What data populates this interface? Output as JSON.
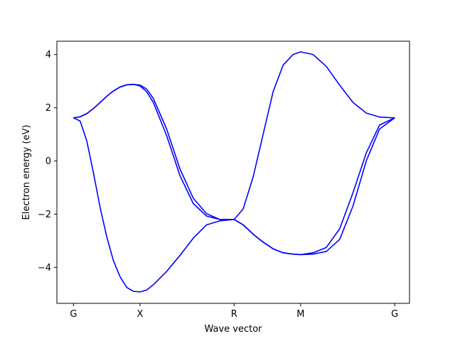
{
  "chart_data": {
    "type": "line",
    "title": "",
    "xlabel": "Wave vector",
    "ylabel": "Electron energy (eV)",
    "xlim": [
      -0.25,
      5.05
    ],
    "ylim": [
      -5.35,
      4.5
    ],
    "grid": false,
    "legend": "none",
    "line_color": "#0000ff",
    "x_ticks": [
      {
        "label": "G",
        "value": 0
      },
      {
        "label": "X",
        "value": 1
      },
      {
        "label": "R",
        "value": 2.414
      },
      {
        "label": "M",
        "value": 3.414
      },
      {
        "label": "G",
        "value": 4.828
      }
    ],
    "y_ticks": [
      -4,
      -2,
      0,
      2,
      4
    ],
    "series": [
      {
        "x": [
          0,
          0.1,
          0.2,
          0.3,
          0.4,
          0.5,
          0.6,
          0.7,
          0.8,
          0.9,
          1.0,
          1.1,
          1.2,
          1.4,
          1.6,
          1.8,
          2.0,
          2.2,
          2.414,
          2.55,
          2.7,
          2.85,
          3.0,
          3.15,
          3.3,
          3.414,
          3.6,
          3.8,
          4.0,
          4.2,
          4.4,
          4.6,
          4.828
        ],
        "y": [
          1.62,
          1.5,
          0.75,
          -0.45,
          -1.75,
          -2.85,
          -3.75,
          -4.35,
          -4.75,
          -4.9,
          -4.92,
          -4.85,
          -4.65,
          -4.15,
          -3.55,
          -2.9,
          -2.4,
          -2.25,
          -2.2,
          -2.4,
          -2.75,
          -3.05,
          -3.3,
          -3.45,
          -3.5,
          -3.52,
          -3.45,
          -3.25,
          -2.55,
          -1.2,
          0.3,
          1.35,
          1.62
        ]
      },
      {
        "x": [
          0,
          0.1,
          0.2,
          0.3,
          0.4,
          0.5,
          0.6,
          0.7,
          0.8,
          0.9,
          1.0,
          1.1,
          1.2,
          1.4,
          1.6,
          1.8,
          2.0,
          2.2,
          2.414,
          2.55,
          2.7,
          2.85,
          3.0,
          3.15,
          3.3,
          3.414,
          3.6,
          3.8,
          4.0,
          4.2,
          4.4,
          4.6,
          4.828
        ],
        "y": [
          1.62,
          1.66,
          1.78,
          1.97,
          2.2,
          2.43,
          2.63,
          2.78,
          2.86,
          2.88,
          2.85,
          2.7,
          2.35,
          1.2,
          -0.3,
          -1.4,
          -1.98,
          -2.2,
          -2.2,
          -1.8,
          -0.6,
          1.0,
          2.6,
          3.6,
          4.0,
          4.1,
          4.0,
          3.55,
          2.85,
          2.2,
          1.8,
          1.65,
          1.62
        ]
      },
      {
        "x": [
          0,
          0.1,
          0.2,
          0.3,
          0.4,
          0.5,
          0.6,
          0.7,
          0.8,
          0.9,
          1.0,
          1.1,
          1.2,
          1.4,
          1.6,
          1.8,
          2.0,
          2.2,
          2.414,
          2.55,
          2.7,
          2.85,
          3.0,
          3.15,
          3.3,
          3.414,
          3.6,
          3.8,
          4.0,
          4.2,
          4.4,
          4.6,
          4.828
        ],
        "y": [
          1.62,
          1.66,
          1.78,
          1.97,
          2.2,
          2.43,
          2.63,
          2.78,
          2.86,
          2.88,
          2.82,
          2.6,
          2.2,
          0.95,
          -0.55,
          -1.6,
          -2.07,
          -2.2,
          -2.2,
          -2.4,
          -2.75,
          -3.05,
          -3.3,
          -3.45,
          -3.5,
          -3.52,
          -3.5,
          -3.4,
          -2.95,
          -1.7,
          0.0,
          1.2,
          1.62
        ]
      }
    ]
  }
}
